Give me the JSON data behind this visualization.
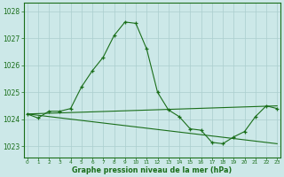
{
  "line1_x": [
    0,
    1,
    2,
    3,
    4,
    5,
    6,
    7,
    8,
    9,
    10,
    11,
    12,
    13,
    14,
    15,
    16,
    17,
    18,
    19,
    20,
    21,
    22,
    23
  ],
  "line1_y": [
    1024.2,
    1024.05,
    1024.3,
    1024.3,
    1024.4,
    1025.2,
    1025.8,
    1026.3,
    1027.1,
    1027.6,
    1027.55,
    1026.6,
    1025.0,
    1024.35,
    1024.1,
    1023.65,
    1023.6,
    1023.15,
    1023.1,
    1023.35,
    1023.55,
    1024.1,
    1024.5,
    1024.4
  ],
  "line2_x": [
    0,
    23
  ],
  "line2_y": [
    1024.2,
    1024.5
  ],
  "line3_x": [
    0,
    23
  ],
  "line3_y": [
    1024.2,
    1023.1
  ],
  "line_color": "#1a6e1a",
  "bg_color": "#cce8e8",
  "grid_color": "#aacece",
  "xlabel": "Graphe pression niveau de la mer (hPa)",
  "yticks": [
    1023,
    1024,
    1025,
    1026,
    1027,
    1028
  ],
  "xtick_labels": [
    "0",
    "1",
    "2",
    "3",
    "4",
    "5",
    "6",
    "7",
    "8",
    "9",
    "10",
    "11",
    "12",
    "13",
    "14",
    "15",
    "16",
    "17",
    "18",
    "19",
    "20",
    "21",
    "22",
    "23"
  ],
  "xticks": [
    0,
    1,
    2,
    3,
    4,
    5,
    6,
    7,
    8,
    9,
    10,
    11,
    12,
    13,
    14,
    15,
    16,
    17,
    18,
    19,
    20,
    21,
    22,
    23
  ],
  "ylim": [
    1022.6,
    1028.3
  ],
  "xlim": [
    -0.3,
    23.3
  ]
}
